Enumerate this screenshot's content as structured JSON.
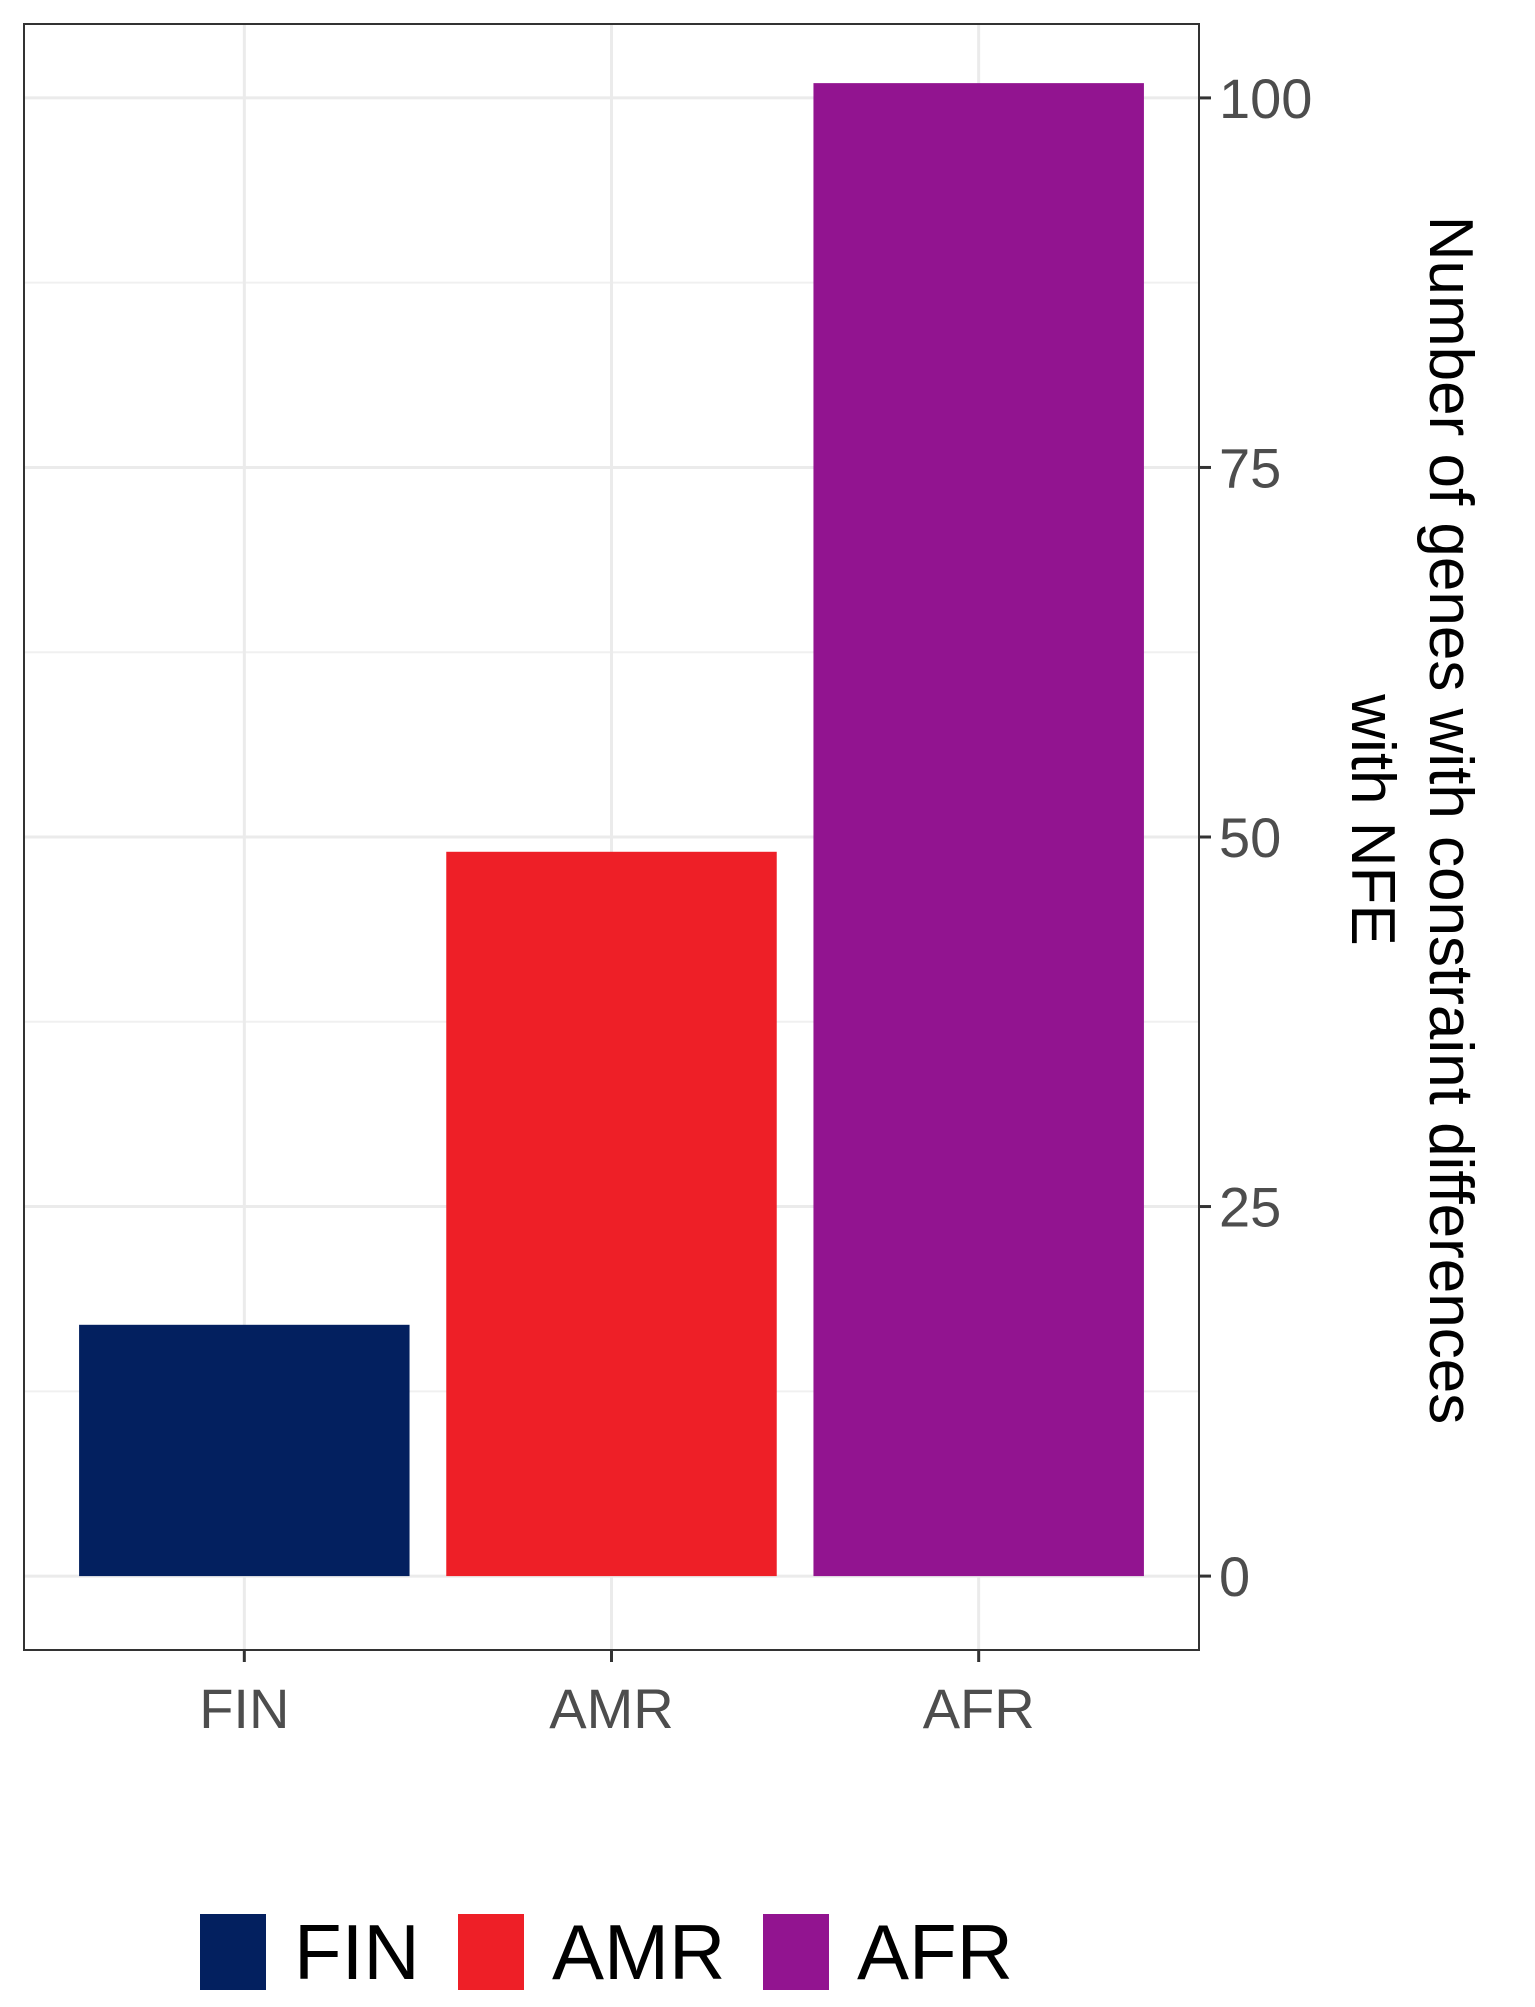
{
  "chart_data": {
    "type": "bar",
    "categories": [
      "FIN",
      "AMR",
      "AFR"
    ],
    "values": [
      17,
      49,
      101
    ],
    "colors": [
      "#03205f",
      "#ee1f27",
      "#921490"
    ],
    "ylabel_lines": [
      "Number of genes with constraint differences",
      "with NFE"
    ],
    "yaxis_position": "right",
    "ylim": [
      -5,
      105
    ],
    "yticks": [
      0,
      25,
      50,
      75,
      100
    ],
    "yminor": [
      12.5,
      37.5,
      62.5,
      87.5
    ],
    "grid": true,
    "legend": {
      "placement": "bottom",
      "entries": [
        "FIN",
        "AMR",
        "AFR"
      ]
    }
  }
}
